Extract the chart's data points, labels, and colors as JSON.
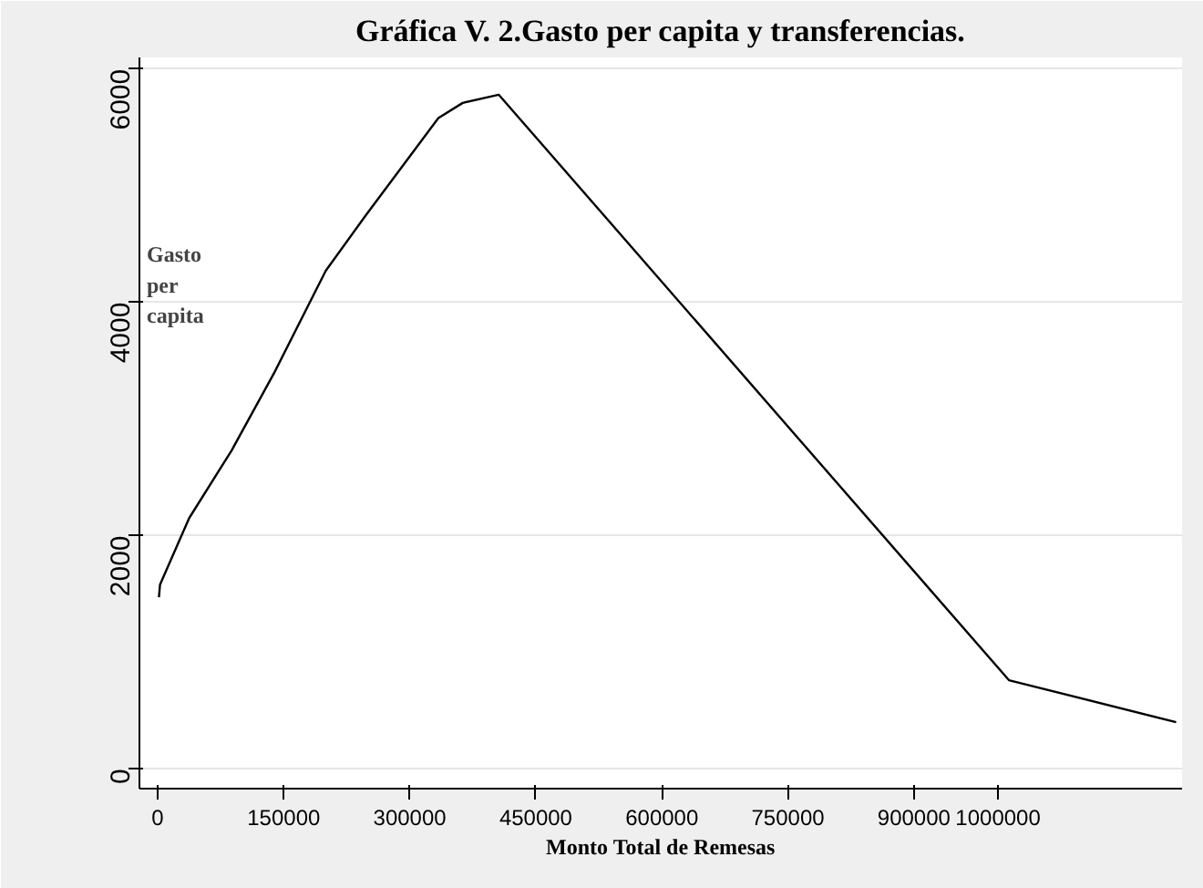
{
  "chart_data": {
    "type": "line",
    "title": "Gráfica V. 2.Gasto per capita y transferencias.",
    "xlabel": "Monto Total de Remesas",
    "ylabel": "Gasto per capita",
    "x": [
      1500,
      2800,
      37500,
      88000,
      139000,
      200000,
      247000,
      334000,
      363000,
      406000,
      1013000,
      1212000
    ],
    "series": [
      {
        "color": "#000000",
        "values": [
          1470,
          1580,
          2150,
          2730,
          3400,
          4270,
          4740,
          5580,
          5710,
          5780,
          760,
          400
        ]
      }
    ],
    "xlim": [
      -21700,
      1219000
    ],
    "xticks": [
      0,
      150000,
      300000,
      450000,
      600000,
      750000,
      900000,
      1000000
    ],
    "ylim": [
      -170,
      6100
    ],
    "yticks": [
      0,
      2000,
      4000,
      6000
    ],
    "grid": "y",
    "marker": "none",
    "line_style": "solid"
  }
}
